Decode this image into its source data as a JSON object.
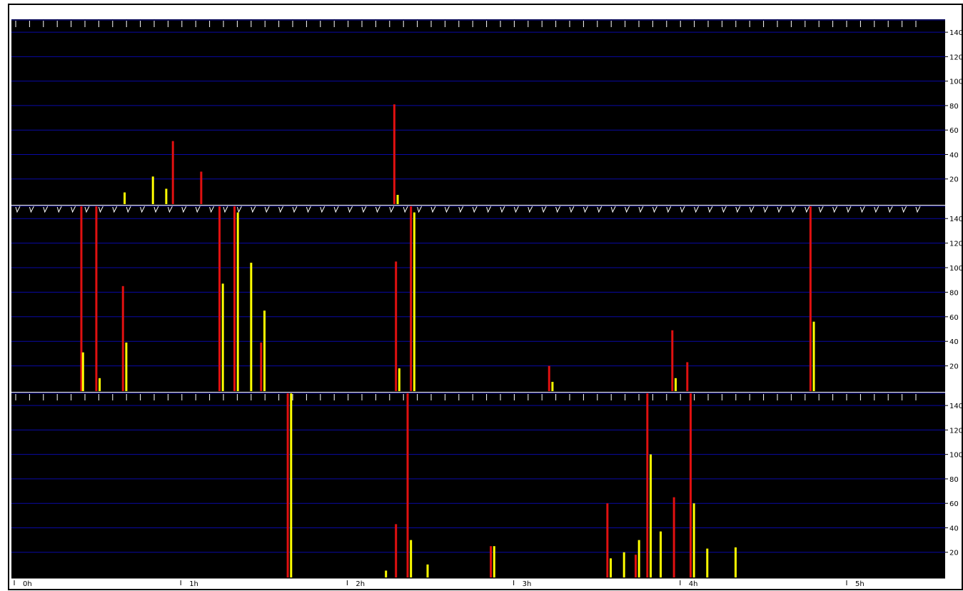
{
  "colors": {
    "background": "#000000",
    "grid": "#0a0aa6",
    "series_a": "#e01010",
    "series_b": "#ffff00",
    "separator": "#ffffff",
    "marker": "#ffffff"
  },
  "time_axis": {
    "labels": [
      "0h",
      "1h",
      "2h",
      "3h",
      "4h",
      "5h"
    ]
  },
  "chart_data": [
    {
      "type": "bar",
      "panel": "top",
      "ylim": [
        0,
        150
      ],
      "yticks": [
        "20",
        "40",
        "60",
        "80",
        "100",
        "120",
        "140"
      ],
      "marker_style": "ticks",
      "x_unit": "hours",
      "series": [
        {
          "color": "red",
          "points": [
            [
              0.91,
              51
            ],
            [
              1.08,
              26
            ],
            [
              2.24,
              81
            ]
          ]
        },
        {
          "color": "yellow",
          "points": [
            [
              0.62,
              9
            ],
            [
              0.79,
              22
            ],
            [
              0.87,
              12
            ],
            [
              2.26,
              7
            ]
          ]
        }
      ]
    },
    {
      "type": "bar",
      "panel": "middle",
      "ylim": [
        0,
        150
      ],
      "yticks": [
        "20",
        "40",
        "60",
        "80",
        "100",
        "120",
        "140"
      ],
      "marker_style": "checks",
      "x_unit": "hours",
      "series": [
        {
          "color": "red",
          "points": [
            [
              0.36,
              150
            ],
            [
              0.45,
              150
            ],
            [
              0.61,
              85
            ],
            [
              1.19,
              150
            ],
            [
              1.28,
              150
            ],
            [
              1.44,
              39
            ],
            [
              2.25,
              105
            ],
            [
              2.34,
              150
            ],
            [
              3.17,
              20
            ],
            [
              3.91,
              49
            ],
            [
              4.0,
              23
            ],
            [
              4.74,
              150
            ]
          ]
        },
        {
          "color": "yellow",
          "points": [
            [
              0.37,
              31
            ],
            [
              0.47,
              10
            ],
            [
              0.63,
              39
            ],
            [
              1.21,
              87
            ],
            [
              1.3,
              145
            ],
            [
              1.38,
              104
            ],
            [
              1.46,
              65
            ],
            [
              2.27,
              18
            ],
            [
              2.36,
              145
            ],
            [
              3.19,
              7
            ],
            [
              3.93,
              10
            ],
            [
              4.76,
              56
            ]
          ]
        }
      ]
    },
    {
      "type": "bar",
      "panel": "bottom",
      "ylim": [
        0,
        150
      ],
      "yticks": [
        "20",
        "40",
        "60",
        "80",
        "100",
        "120",
        "140"
      ],
      "marker_style": "ticks",
      "x_unit": "hours",
      "series": [
        {
          "color": "red",
          "points": [
            [
              1.6,
              150
            ],
            [
              2.25,
              43
            ],
            [
              2.32,
              150
            ],
            [
              2.82,
              25
            ],
            [
              3.52,
              60
            ],
            [
              3.69,
              18
            ],
            [
              3.76,
              150
            ],
            [
              3.92,
              65
            ],
            [
              4.02,
              150
            ]
          ]
        },
        {
          "color": "yellow",
          "points": [
            [
              1.62,
              150
            ],
            [
              2.19,
              5
            ],
            [
              2.34,
              30
            ],
            [
              2.44,
              10
            ],
            [
              2.84,
              25
            ],
            [
              3.54,
              15
            ],
            [
              3.62,
              20
            ],
            [
              3.71,
              30
            ],
            [
              3.78,
              100
            ],
            [
              3.84,
              37
            ],
            [
              4.04,
              60
            ],
            [
              4.12,
              23
            ],
            [
              4.29,
              24
            ]
          ]
        }
      ]
    }
  ]
}
